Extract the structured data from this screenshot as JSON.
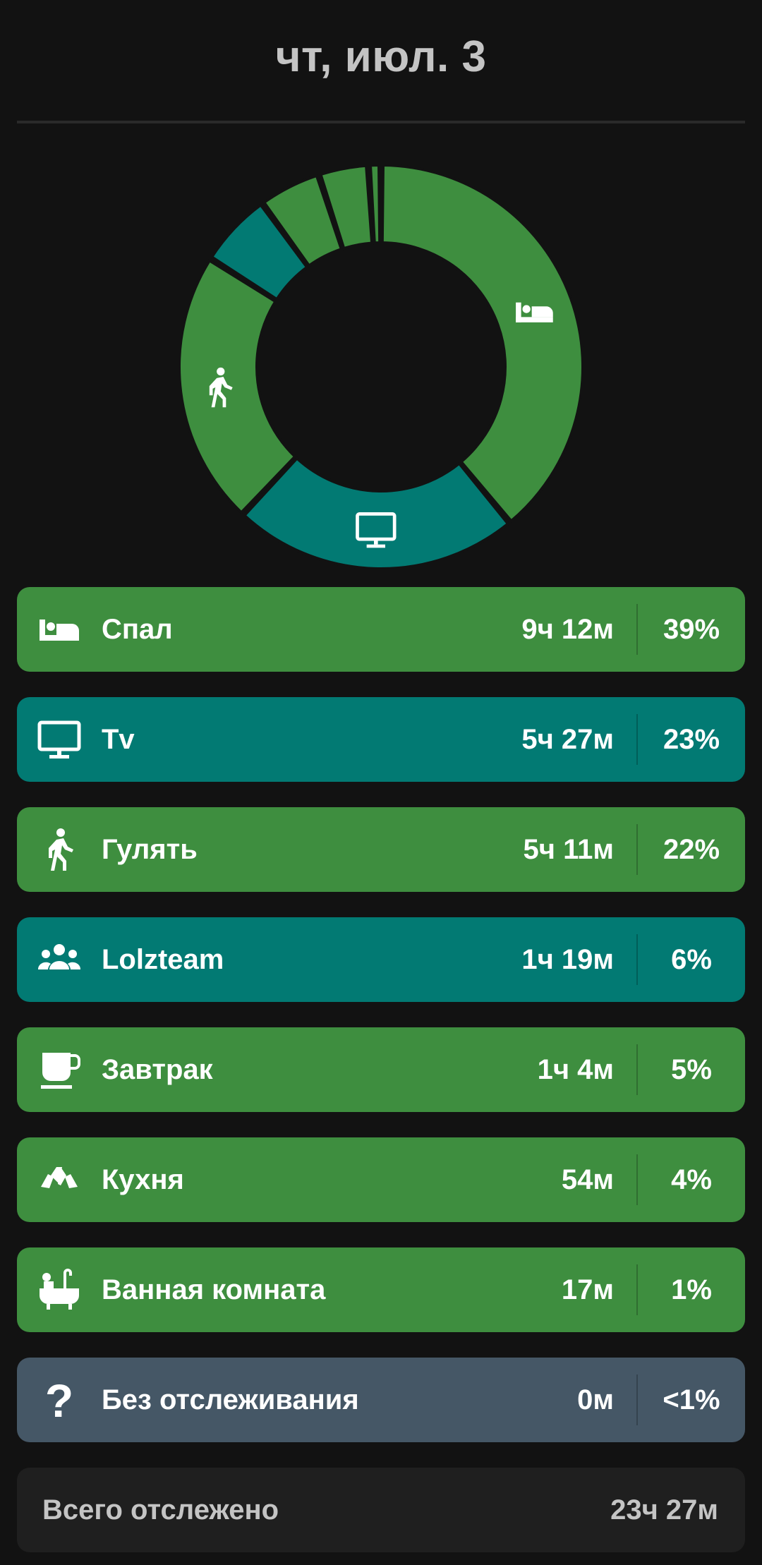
{
  "header": {
    "date": "чт, июл. 3"
  },
  "colors": {
    "green": "#3e8e3f",
    "teal": "#027a73",
    "gray": "#455766",
    "background": "#121212"
  },
  "activities": [
    {
      "label": "Спал",
      "duration": "9ч 12м",
      "percent": "39%",
      "fraction": 0.39,
      "color": "#3e8e3f",
      "icon": "bed-icon"
    },
    {
      "label": "Tv",
      "duration": "5ч 27м",
      "percent": "23%",
      "fraction": 0.23,
      "color": "#027a73",
      "icon": "tv-icon"
    },
    {
      "label": "Гулять",
      "duration": "5ч 11м",
      "percent": "22%",
      "fraction": 0.22,
      "color": "#3e8e3f",
      "icon": "walk-icon"
    },
    {
      "label": "Lolzteam",
      "duration": "1ч 19м",
      "percent": "6%",
      "fraction": 0.06,
      "color": "#027a73",
      "icon": "group-icon"
    },
    {
      "label": "Завтрак",
      "duration": "1ч 4м",
      "percent": "5%",
      "fraction": 0.05,
      "color": "#3e8e3f",
      "icon": "cup-icon"
    },
    {
      "label": "Кухня",
      "duration": "54м",
      "percent": "4%",
      "fraction": 0.04,
      "color": "#3e8e3f",
      "icon": "kitchen-icon"
    },
    {
      "label": "Ванная комната",
      "duration": "17м",
      "percent": "1%",
      "fraction": 0.01,
      "color": "#3e8e3f",
      "icon": "bathtub-icon"
    },
    {
      "label": "Без отслеживания",
      "duration": "0м",
      "percent": "<1%",
      "fraction": 0.0,
      "color": "#455766",
      "icon": "question-icon"
    }
  ],
  "total": {
    "label": "Всего отслежено",
    "value": "23ч 27м"
  }
}
